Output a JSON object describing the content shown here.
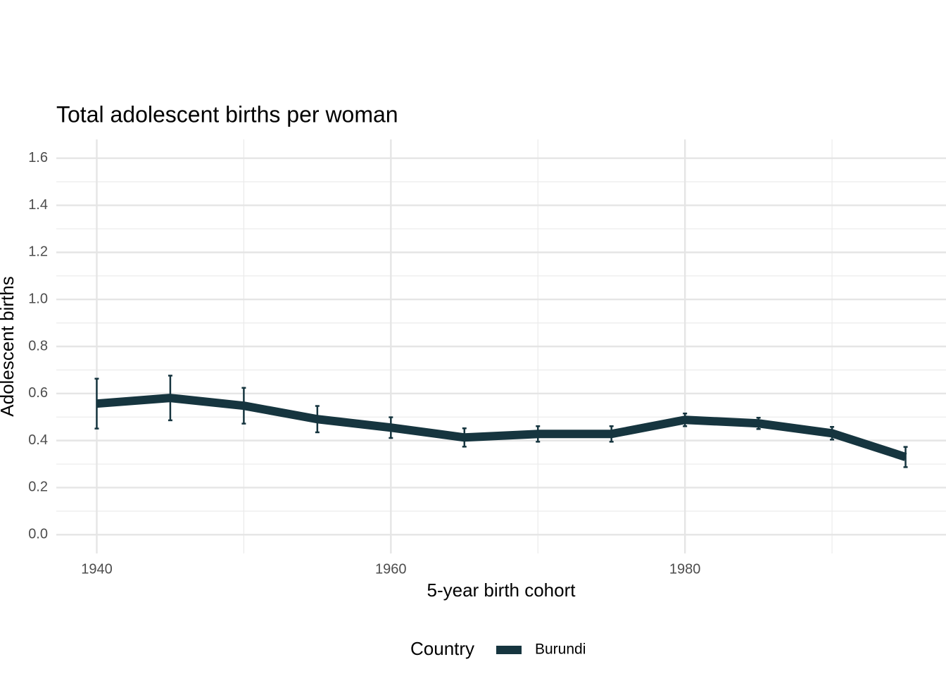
{
  "chart_data": {
    "type": "line",
    "title": "Total adolescent births per woman",
    "x_label": "5-year birth cohort",
    "y_label": "Adolescent births",
    "legend_title": "Country",
    "legend_position": "bottom",
    "x": [
      1940,
      1945,
      1950,
      1955,
      1960,
      1965,
      1970,
      1975,
      1980,
      1985,
      1990,
      1995
    ],
    "series": [
      {
        "name": "Burundi",
        "color": "#16353f",
        "values": [
          0.557,
          0.581,
          0.548,
          0.491,
          0.455,
          0.413,
          0.428,
          0.428,
          0.488,
          0.473,
          0.431,
          0.33
        ],
        "errors": [
          0.106,
          0.095,
          0.076,
          0.056,
          0.044,
          0.039,
          0.033,
          0.033,
          0.027,
          0.024,
          0.027,
          0.043
        ]
      }
    ],
    "xlim": [
      1937.25,
      1997.75
    ],
    "xticks": [
      1940,
      1960,
      1980
    ],
    "x_minor_ticks": [
      1950,
      1970,
      1990
    ],
    "ylim": [
      -0.08,
      1.68
    ],
    "yticks": [
      {
        "value": 0,
        "label": "0.0"
      },
      {
        "value": 0.2,
        "label": "0.2"
      },
      {
        "value": 0.4,
        "label": "0.4"
      },
      {
        "value": 0.6,
        "label": "0.6"
      },
      {
        "value": 0.8,
        "label": "0.8"
      },
      {
        "value": 1,
        "label": "1.0"
      },
      {
        "value": 1.2,
        "label": "1.2"
      },
      {
        "value": 1.4,
        "label": "1.4"
      },
      {
        "value": 1.6,
        "label": "1.6"
      }
    ],
    "y_minor_ticks": [
      0.1,
      0.3,
      0.5,
      0.7,
      0.9,
      1.1,
      1.3,
      1.5
    ],
    "grid": true
  }
}
